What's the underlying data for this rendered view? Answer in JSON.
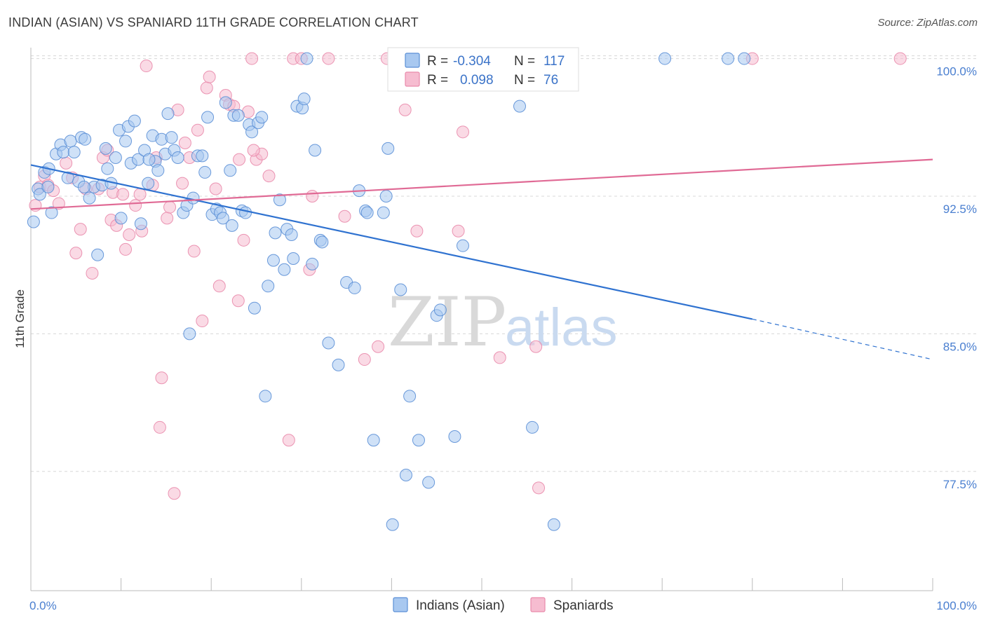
{
  "title": "INDIAN (ASIAN) VS SPANIARD 11TH GRADE CORRELATION CHART",
  "source": "Source: ZipAtlas.com",
  "watermark": {
    "zip": "ZIP",
    "atlas": "atlas"
  },
  "colors": {
    "blue_fill": "#a8c8f0",
    "blue_stroke": "#5b8fd6",
    "blue_line": "#2f72d0",
    "pink_fill": "#f6bcd0",
    "pink_stroke": "#e98aab",
    "pink_line": "#e06a95",
    "grid": "#d8d8d8"
  },
  "legend": {
    "r_label": "R =",
    "n_label": "N =",
    "rows": [
      {
        "series": "blue",
        "r": "-0.304",
        "n": "117"
      },
      {
        "series": "pink",
        "r": "0.098",
        "n": "76"
      }
    ]
  },
  "bottom_legend": [
    {
      "series": "blue",
      "label": "Indians (Asian)"
    },
    {
      "series": "pink",
      "label": "Spaniards"
    }
  ],
  "chart_data": {
    "type": "scatter",
    "title": "INDIAN (ASIAN) VS SPANIARD 11TH GRADE CORRELATION CHART",
    "xlabel": "",
    "ylabel": "11th Grade",
    "xlim": [
      0,
      100
    ],
    "ylim": [
      71.0,
      100.9
    ],
    "x_tick_labels": [
      {
        "value": 0,
        "label": "0.0%"
      },
      {
        "value": 100,
        "label": "100.0%"
      }
    ],
    "y_ticks": [
      {
        "value": 100.0,
        "label": "100.0%"
      },
      {
        "value": 92.5,
        "label": "92.5%"
      },
      {
        "value": 85.0,
        "label": "85.0%"
      },
      {
        "value": 77.5,
        "label": "77.5%"
      }
    ],
    "grid": true,
    "legend_position": "top-center",
    "series": [
      {
        "name": "Indians (Asian)",
        "color": "blue",
        "trend": {
          "x0": 0,
          "y0": 94.2,
          "x1": 80,
          "y1": 85.8,
          "dash_to": 100,
          "dash_y": 83.6
        },
        "points": [
          [
            0.3,
            91.1
          ],
          [
            0.8,
            92.9
          ],
          [
            1.0,
            92.6
          ],
          [
            1.5,
            93.8
          ],
          [
            1.9,
            93.0
          ],
          [
            2.0,
            94.0
          ],
          [
            2.3,
            91.6
          ],
          [
            2.8,
            94.8
          ],
          [
            3.3,
            95.3
          ],
          [
            3.6,
            94.9
          ],
          [
            4.1,
            93.5
          ],
          [
            4.4,
            95.5
          ],
          [
            4.8,
            94.9
          ],
          [
            5.3,
            93.3
          ],
          [
            5.6,
            95.7
          ],
          [
            6.0,
            95.6
          ],
          [
            6.5,
            92.4
          ],
          [
            7.0,
            93.0
          ],
          [
            7.4,
            89.3
          ],
          [
            7.9,
            93.1
          ],
          [
            8.3,
            95.1
          ],
          [
            8.5,
            94.0
          ],
          [
            8.9,
            93.2
          ],
          [
            9.4,
            94.6
          ],
          [
            9.8,
            96.1
          ],
          [
            10.0,
            91.3
          ],
          [
            10.5,
            95.5
          ],
          [
            10.8,
            96.3
          ],
          [
            11.1,
            94.3
          ],
          [
            11.5,
            96.6
          ],
          [
            11.9,
            94.5
          ],
          [
            12.2,
            91.0
          ],
          [
            12.6,
            95.0
          ],
          [
            13.0,
            93.2
          ],
          [
            13.5,
            95.8
          ],
          [
            13.8,
            94.4
          ],
          [
            14.1,
            93.9
          ],
          [
            14.5,
            95.6
          ],
          [
            14.9,
            94.8
          ],
          [
            15.2,
            97.0
          ],
          [
            15.6,
            95.7
          ],
          [
            15.9,
            95.0
          ],
          [
            16.3,
            94.6
          ],
          [
            16.9,
            91.6
          ],
          [
            17.3,
            92.0
          ],
          [
            17.6,
            85.0
          ],
          [
            18.0,
            92.4
          ],
          [
            18.5,
            94.7
          ],
          [
            19.0,
            94.7
          ],
          [
            19.3,
            93.8
          ],
          [
            19.6,
            96.8
          ],
          [
            20.1,
            91.5
          ],
          [
            20.6,
            91.8
          ],
          [
            21.0,
            91.6
          ],
          [
            21.3,
            91.3
          ],
          [
            21.6,
            97.6
          ],
          [
            22.1,
            93.9
          ],
          [
            22.5,
            96.9
          ],
          [
            23.0,
            96.9
          ],
          [
            23.4,
            91.7
          ],
          [
            23.8,
            91.6
          ],
          [
            24.2,
            96.4
          ],
          [
            24.5,
            96.0
          ],
          [
            24.8,
            86.4
          ],
          [
            25.2,
            96.5
          ],
          [
            25.6,
            96.8
          ],
          [
            26.0,
            81.6
          ],
          [
            26.3,
            87.6
          ],
          [
            26.9,
            89.0
          ],
          [
            27.1,
            90.5
          ],
          [
            27.6,
            92.3
          ],
          [
            28.1,
            88.5
          ],
          [
            28.4,
            90.7
          ],
          [
            28.9,
            90.4
          ],
          [
            29.1,
            89.1
          ],
          [
            29.5,
            97.4
          ],
          [
            30.1,
            97.3
          ],
          [
            30.3,
            97.8
          ],
          [
            30.6,
            100.0
          ],
          [
            31.2,
            88.8
          ],
          [
            31.5,
            95.0
          ],
          [
            32.1,
            90.1
          ],
          [
            32.3,
            90.0
          ],
          [
            33.0,
            84.5
          ],
          [
            34.1,
            83.3
          ],
          [
            35.0,
            87.8
          ],
          [
            35.9,
            87.5
          ],
          [
            37.1,
            91.7
          ],
          [
            37.3,
            91.6
          ],
          [
            38.0,
            79.2
          ],
          [
            39.1,
            91.6
          ],
          [
            39.4,
            92.5
          ],
          [
            39.6,
            95.1
          ],
          [
            40.1,
            74.6
          ],
          [
            41.0,
            87.4
          ],
          [
            41.6,
            77.3
          ],
          [
            42.0,
            81.6
          ],
          [
            42.3,
            100.0
          ],
          [
            43.0,
            79.2
          ],
          [
            43.6,
            100.0
          ],
          [
            44.1,
            76.9
          ],
          [
            45.0,
            86.0
          ],
          [
            45.4,
            86.3
          ],
          [
            46.3,
            100.0
          ],
          [
            47.0,
            79.4
          ],
          [
            47.9,
            89.8
          ],
          [
            50.1,
            100.0
          ],
          [
            54.2,
            97.4
          ],
          [
            55.6,
            79.9
          ],
          [
            58.0,
            74.6
          ],
          [
            70.3,
            100.0
          ],
          [
            77.3,
            100.0
          ],
          [
            79.1,
            100.0
          ],
          [
            13.1,
            94.5
          ],
          [
            5.9,
            93.0
          ],
          [
            22.3,
            90.9
          ],
          [
            36.4,
            92.8
          ]
        ]
      },
      {
        "name": "Spaniards",
        "color": "pink",
        "trend": {
          "x0": 0,
          "y0": 91.8,
          "x1": 100,
          "y1": 94.5
        },
        "points": [
          [
            0.5,
            92.0
          ],
          [
            1.0,
            93.0
          ],
          [
            1.5,
            93.6
          ],
          [
            1.9,
            93.1
          ],
          [
            2.5,
            92.8
          ],
          [
            3.1,
            92.1
          ],
          [
            3.9,
            94.3
          ],
          [
            4.6,
            93.5
          ],
          [
            5.0,
            89.4
          ],
          [
            5.5,
            90.7
          ],
          [
            6.1,
            92.9
          ],
          [
            6.8,
            88.3
          ],
          [
            7.5,
            92.9
          ],
          [
            8.0,
            94.6
          ],
          [
            8.5,
            95.0
          ],
          [
            8.9,
            91.2
          ],
          [
            9.1,
            92.7
          ],
          [
            9.5,
            90.9
          ],
          [
            10.2,
            92.6
          ],
          [
            10.5,
            89.6
          ],
          [
            10.9,
            90.4
          ],
          [
            11.6,
            92.0
          ],
          [
            12.1,
            92.6
          ],
          [
            12.8,
            99.6
          ],
          [
            13.5,
            93.1
          ],
          [
            13.9,
            94.6
          ],
          [
            14.3,
            79.9
          ],
          [
            14.5,
            82.6
          ],
          [
            15.1,
            91.3
          ],
          [
            15.4,
            91.9
          ],
          [
            15.9,
            76.3
          ],
          [
            16.3,
            97.2
          ],
          [
            16.8,
            93.2
          ],
          [
            17.1,
            95.4
          ],
          [
            17.6,
            94.6
          ],
          [
            18.1,
            89.5
          ],
          [
            18.5,
            96.1
          ],
          [
            19.0,
            85.7
          ],
          [
            19.5,
            98.4
          ],
          [
            19.8,
            99.0
          ],
          [
            20.5,
            92.9
          ],
          [
            20.9,
            87.6
          ],
          [
            21.6,
            98.0
          ],
          [
            22.0,
            97.5
          ],
          [
            22.5,
            97.4
          ],
          [
            23.0,
            86.8
          ],
          [
            23.1,
            94.5
          ],
          [
            23.6,
            90.1
          ],
          [
            24.1,
            97.1
          ],
          [
            24.5,
            100.0
          ],
          [
            25.0,
            94.5
          ],
          [
            25.6,
            94.8
          ],
          [
            26.4,
            93.6
          ],
          [
            28.6,
            79.2
          ],
          [
            29.1,
            100.0
          ],
          [
            30.0,
            100.0
          ],
          [
            30.9,
            88.5
          ],
          [
            31.2,
            92.5
          ],
          [
            33.0,
            100.0
          ],
          [
            34.8,
            91.4
          ],
          [
            37.0,
            83.6
          ],
          [
            38.5,
            84.3
          ],
          [
            39.5,
            100.0
          ],
          [
            41.5,
            97.2
          ],
          [
            42.8,
            90.6
          ],
          [
            44.0,
            100.0
          ],
          [
            47.4,
            90.6
          ],
          [
            47.9,
            96.0
          ],
          [
            50.2,
            100.0
          ],
          [
            52.0,
            83.7
          ],
          [
            56.0,
            84.3
          ],
          [
            56.3,
            76.6
          ],
          [
            80.0,
            100.0
          ],
          [
            96.4,
            100.0
          ],
          [
            24.7,
            95.0
          ],
          [
            12.3,
            90.6
          ]
        ]
      }
    ]
  }
}
